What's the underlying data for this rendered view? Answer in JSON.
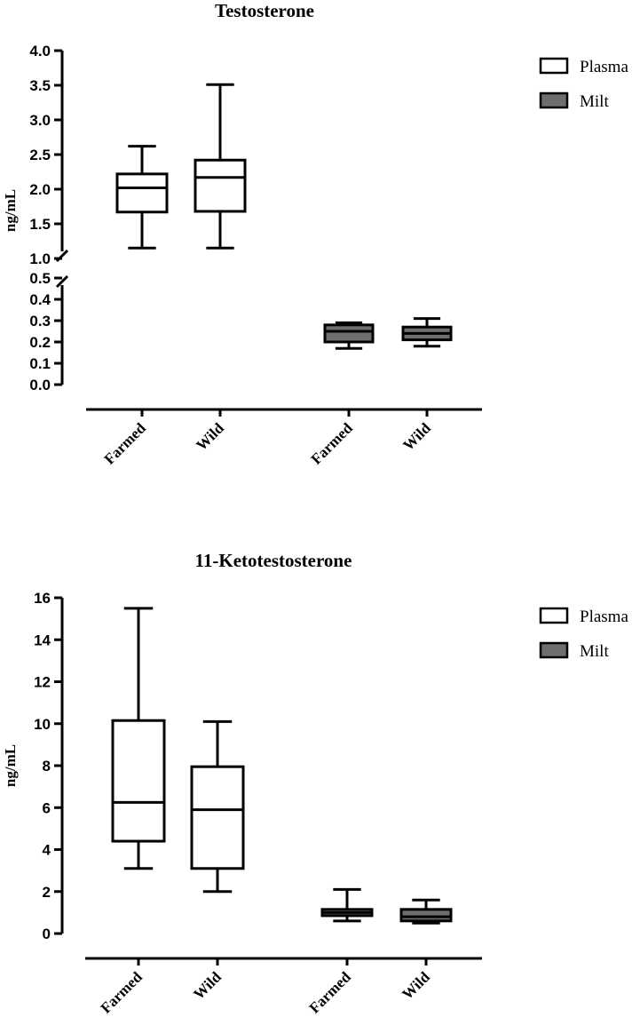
{
  "chart_data": [
    {
      "type": "box",
      "title": "Testosterone",
      "ylabel": "ng/mL",
      "y_axis_break": {
        "lower_range": [
          0.0,
          0.5
        ],
        "upper_range": [
          1.0,
          4.0
        ]
      },
      "lower_ticks": [
        "0.0",
        "0.1",
        "0.2",
        "0.3",
        "0.4",
        "0.5"
      ],
      "upper_ticks": [
        "1.0",
        "1.5",
        "2.0",
        "2.5",
        "3.0",
        "3.5",
        "4.0"
      ],
      "categories": [
        "Farmed",
        "Wild",
        "Farmed",
        "Wild"
      ],
      "legend": [
        {
          "label": "Plasma",
          "color": "#ffffff"
        },
        {
          "label": "Milt",
          "color": "#6e6e6e"
        }
      ],
      "series": [
        {
          "name": "Plasma",
          "color": "#ffffff",
          "boxes": [
            {
              "category": "Farmed",
              "min": 1.15,
              "q1": 1.67,
              "median": 2.02,
              "q3": 2.22,
              "max": 2.62
            },
            {
              "category": "Wild",
              "min": 1.15,
              "q1": 1.68,
              "median": 2.17,
              "q3": 2.42,
              "max": 3.51
            }
          ]
        },
        {
          "name": "Milt",
          "color": "#6e6e6e",
          "boxes": [
            {
              "category": "Farmed",
              "min": 0.17,
              "q1": 0.2,
              "median": 0.25,
              "q3": 0.28,
              "max": 0.29
            },
            {
              "category": "Wild",
              "min": 0.18,
              "q1": 0.21,
              "median": 0.24,
              "q3": 0.27,
              "max": 0.31
            }
          ]
        }
      ]
    },
    {
      "type": "box",
      "title": "11-Ketotestosterone",
      "ylabel": "ng/mL",
      "ylim": [
        0,
        16
      ],
      "ticks": [
        "0",
        "2",
        "4",
        "6",
        "8",
        "10",
        "12",
        "14",
        "16"
      ],
      "categories": [
        "Farmed",
        "Wild",
        "Farmed",
        "Wild"
      ],
      "legend": [
        {
          "label": "Plasma",
          "color": "#ffffff"
        },
        {
          "label": "Milt",
          "color": "#6e6e6e"
        }
      ],
      "series": [
        {
          "name": "Plasma",
          "color": "#ffffff",
          "boxes": [
            {
              "category": "Farmed",
              "min": 3.1,
              "q1": 4.4,
              "median": 6.25,
              "q3": 10.15,
              "max": 15.5
            },
            {
              "category": "Wild",
              "min": 2.0,
              "q1": 3.1,
              "median": 5.9,
              "q3": 7.95,
              "max": 10.1
            }
          ]
        },
        {
          "name": "Milt",
          "color": "#6e6e6e",
          "boxes": [
            {
              "category": "Farmed",
              "min": 0.6,
              "q1": 0.85,
              "median": 1.0,
              "q3": 1.15,
              "max": 2.1
            },
            {
              "category": "Wild",
              "min": 0.5,
              "q1": 0.6,
              "median": 0.8,
              "q3": 1.15,
              "max": 1.6
            }
          ]
        }
      ]
    }
  ]
}
